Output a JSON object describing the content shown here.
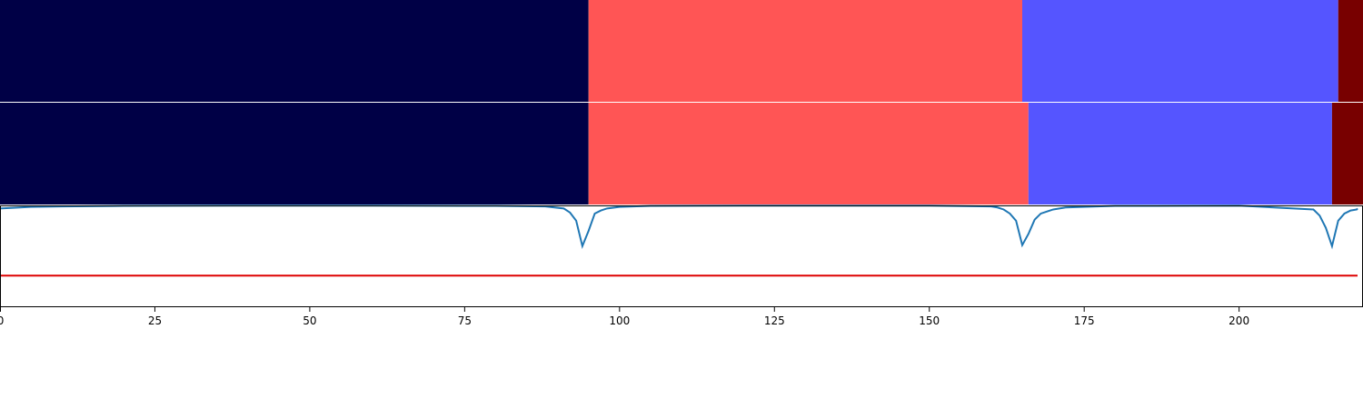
{
  "chart_data": {
    "type": "area",
    "xlim": [
      0,
      220
    ],
    "x_ticks": [
      0,
      25,
      50,
      75,
      100,
      125,
      150,
      175,
      200
    ],
    "x_tick_labels": [
      "0",
      "25",
      "50",
      "75",
      "100",
      "125",
      "150",
      "175",
      "200"
    ],
    "segment_rows": [
      {
        "segments": [
          {
            "start": 0,
            "end": 95,
            "color": "#000046"
          },
          {
            "start": 95,
            "end": 165,
            "color": "#ff5555"
          },
          {
            "start": 165,
            "end": 216,
            "color": "#5555ff"
          },
          {
            "start": 216,
            "end": 220,
            "color": "#780000"
          }
        ]
      },
      {
        "segments": [
          {
            "start": 0,
            "end": 95,
            "color": "#000046"
          },
          {
            "start": 95,
            "end": 166,
            "color": "#ff5555"
          },
          {
            "start": 166,
            "end": 215,
            "color": "#5555ff"
          },
          {
            "start": 215,
            "end": 220,
            "color": "#780000"
          }
        ]
      }
    ],
    "line_panel": {
      "ylim": [
        0,
        1
      ],
      "threshold": {
        "value": 0.31,
        "color": "#dd0000"
      },
      "series": [
        {
          "color": "#1f77b4",
          "x": [
            0,
            5,
            10,
            20,
            40,
            60,
            80,
            88,
            91,
            92,
            93,
            94,
            95,
            96,
            97,
            98,
            100,
            105,
            120,
            150,
            160,
            161,
            162,
            163,
            164,
            165,
            166,
            167,
            168,
            169,
            170,
            172,
            180,
            200,
            212,
            213,
            214,
            215,
            216,
            217,
            218,
            219,
            220
          ],
          "y": [
            0.97,
            0.985,
            0.99,
            0.995,
            0.998,
            0.998,
            0.995,
            0.99,
            0.97,
            0.93,
            0.85,
            0.6,
            0.75,
            0.92,
            0.95,
            0.97,
            0.985,
            0.995,
            0.998,
            0.998,
            0.99,
            0.98,
            0.96,
            0.92,
            0.85,
            0.61,
            0.72,
            0.86,
            0.92,
            0.94,
            0.96,
            0.98,
            0.995,
            0.998,
            0.96,
            0.9,
            0.78,
            0.6,
            0.85,
            0.92,
            0.95,
            0.96,
            0.97
          ]
        }
      ]
    }
  }
}
